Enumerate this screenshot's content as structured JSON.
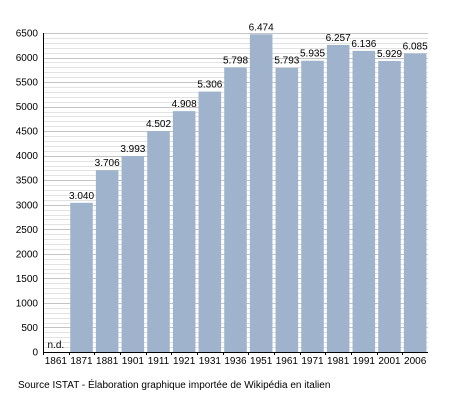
{
  "chart_data": {
    "type": "bar",
    "categories": [
      "1861",
      "1871",
      "1881",
      "1901",
      "1911",
      "1921",
      "1931",
      "1936",
      "1951",
      "1961",
      "1971",
      "1981",
      "1991",
      "2001",
      "2006"
    ],
    "values": [
      null,
      3040,
      3706,
      3993,
      4502,
      4908,
      5306,
      5798,
      6474,
      5793,
      5935,
      6257,
      6136,
      5929,
      6085
    ],
    "data_labels": [
      "n.d.",
      "3.040",
      "3.706",
      "3.993",
      "4.502",
      "4.908",
      "5.306",
      "5.798",
      "6.474",
      "5.793",
      "5.935",
      "6.257",
      "6.136",
      "5.929",
      "6.085"
    ],
    "yticks": [
      0,
      500,
      1000,
      1500,
      2000,
      2500,
      3000,
      3500,
      4000,
      4500,
      5000,
      5500,
      6000,
      6500
    ],
    "ylim": [
      0,
      6500
    ],
    "grid": true,
    "bar_color": "#9fb4cc",
    "title": "",
    "xlabel": "",
    "ylabel": ""
  },
  "source_note": "Source ISTAT - Élaboration graphique importée de Wikipédia en italien"
}
